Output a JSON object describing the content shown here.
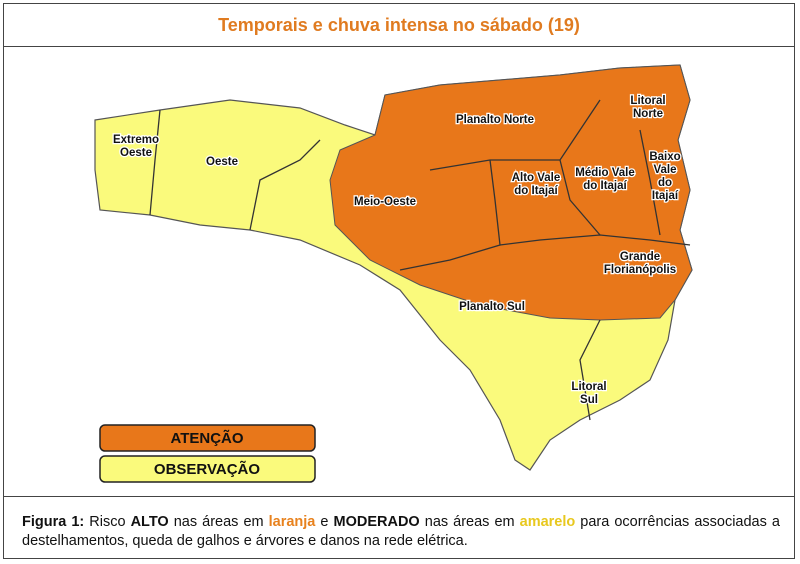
{
  "title": "Temporais e chuva intensa no sábado (19)",
  "regions": [
    {
      "lines": [
        "Extremo",
        "Oeste"
      ]
    },
    {
      "lines": [
        "Oeste"
      ]
    },
    {
      "lines": [
        "Meio-Oeste"
      ]
    },
    {
      "lines": [
        "Planalto Norte"
      ]
    },
    {
      "lines": [
        "Litoral",
        "Norte"
      ]
    },
    {
      "lines": [
        "Baixo",
        "Vale",
        "do",
        "Itajaí"
      ]
    },
    {
      "lines": [
        "Médio Vale",
        "do Itajaí"
      ]
    },
    {
      "lines": [
        "Alto Vale",
        "do Itajaí"
      ]
    },
    {
      "lines": [
        "Grande",
        "Florianópolis"
      ]
    },
    {
      "lines": [
        "Planalto Sul"
      ]
    },
    {
      "lines": [
        "Litoral",
        "Sul"
      ]
    }
  ],
  "legend": [
    {
      "label": "ATENÇÃO",
      "color": "#e8771a"
    },
    {
      "label": "OBSERVAÇÃO",
      "color": "#fafa7c"
    }
  ],
  "caption": [
    "Figura 1:",
    " Risco ",
    "ALTO",
    " nas áreas em ",
    "laranja",
    " e ",
    "MODERADO",
    " nas áreas em ",
    "amarelo",
    " para ocorrências associadas a destelhamentos, queda de galhos e árvores e danos na rede elétrica."
  ]
}
